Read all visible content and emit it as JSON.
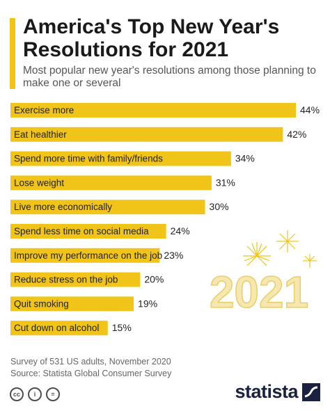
{
  "header": {
    "title": "America's Top New Year's Resolutions for 2021",
    "subtitle": "Most popular new year's resolutions among those planning to make one or several"
  },
  "colors": {
    "accent": "#f0c419",
    "bar": "#f0c419",
    "deco_number": "#f5e7ad",
    "text": "#1a1a1a",
    "logo": "#1a2240"
  },
  "decoration": {
    "year_text": "2021"
  },
  "chart_data": {
    "type": "bar",
    "orientation": "horizontal",
    "categories": [
      "Exercise more",
      "Eat healthier",
      "Spend more time with family/friends",
      "Lose weight",
      "Live more economically",
      "Spend less time on social media",
      "Improve my performance on the job",
      "Reduce stress on the job",
      "Quit smoking",
      "Cut down on alcohol"
    ],
    "values": [
      44,
      42,
      34,
      31,
      30,
      24,
      23,
      20,
      19,
      15
    ],
    "value_labels": [
      "44%",
      "42%",
      "34%",
      "31%",
      "30%",
      "24%",
      "23%",
      "20%",
      "19%",
      "15%"
    ],
    "unit": "%",
    "xlim": [
      0,
      44
    ],
    "grid": false,
    "legend": "none"
  },
  "footer": {
    "note_line1": "Survey of 531 US adults, November 2020",
    "note_line2": "Source: Statista Global Consumer Survey",
    "cc_icons": [
      "cc-icon",
      "by-icon",
      "nd-icon"
    ],
    "cc_labels": [
      "cc",
      "i",
      "="
    ],
    "logo_text": "statista"
  }
}
